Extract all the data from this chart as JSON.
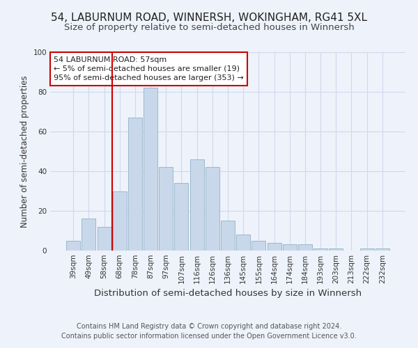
{
  "title": "54, LABURNUM ROAD, WINNERSH, WOKINGHAM, RG41 5XL",
  "subtitle": "Size of property relative to semi-detached houses in Winnersh",
  "xlabel": "Distribution of semi-detached houses by size in Winnersh",
  "ylabel": "Number of semi-detached properties",
  "categories": [
    "39sqm",
    "49sqm",
    "58sqm",
    "68sqm",
    "78sqm",
    "87sqm",
    "97sqm",
    "107sqm",
    "116sqm",
    "126sqm",
    "136sqm",
    "145sqm",
    "155sqm",
    "164sqm",
    "174sqm",
    "184sqm",
    "193sqm",
    "203sqm",
    "213sqm",
    "222sqm",
    "232sqm"
  ],
  "values": [
    5,
    16,
    12,
    30,
    67,
    82,
    42,
    34,
    46,
    42,
    15,
    8,
    5,
    4,
    3,
    3,
    1,
    1,
    0,
    1,
    1
  ],
  "bar_color": "#c8d8ea",
  "bar_edge_color": "#9ab8cc",
  "property_line_x": 2.5,
  "annotation_title": "54 LABURNUM ROAD: 57sqm",
  "annotation_line1": "← 5% of semi-detached houses are smaller (19)",
  "annotation_line2": "95% of semi-detached houses are larger (353) →",
  "annotation_box_color": "#ffffff",
  "annotation_box_edge": "#cc0000",
  "vline_color": "#cc0000",
  "background_color": "#eef2fa",
  "grid_color": "#d0d8ec",
  "footer_line1": "Contains HM Land Registry data © Crown copyright and database right 2024.",
  "footer_line2": "Contains public sector information licensed under the Open Government Licence v3.0.",
  "ylim": [
    0,
    100
  ],
  "title_fontsize": 11,
  "subtitle_fontsize": 9.5,
  "xlabel_fontsize": 9.5,
  "ylabel_fontsize": 8.5,
  "tick_fontsize": 7.5,
  "annotation_fontsize": 8,
  "footer_fontsize": 7
}
